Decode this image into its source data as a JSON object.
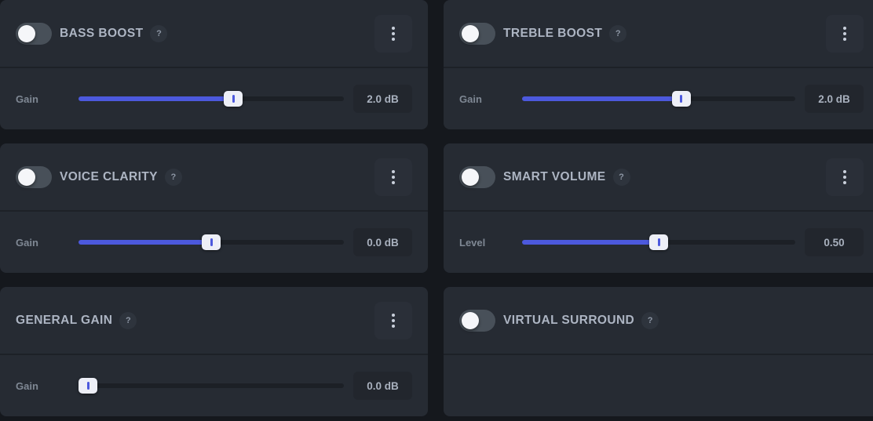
{
  "theme": {
    "page_bg": "#15181d",
    "panel_bg": "#262b33",
    "divider": "#1d2127",
    "track_bg": "#1c2026",
    "accent": "#4c59dd",
    "thumb_bg": "#edeff7",
    "title_color": "#adb5c3",
    "label_color": "#7f8894",
    "value_color": "#a9b1be",
    "value_box_bg": "#22262d",
    "toggle_bg": "#485059",
    "knob_color": "#f5f6f9",
    "menu_btn_bg": "#2a2f38",
    "dot_color": "#c9d0db",
    "help_bg": "#2e343d",
    "help_color": "#8d96a4"
  },
  "panels": [
    {
      "title": "BASS BOOST",
      "help_label": "?",
      "toggle_state": "off",
      "control": {
        "label": "Gain",
        "value": "2.0 dB",
        "percent": 58.3
      }
    },
    {
      "title": "TREBLE BOOST",
      "help_label": "?",
      "toggle_state": "off",
      "control": {
        "label": "Gain",
        "value": "2.0 dB",
        "percent": 58.3
      }
    },
    {
      "title": "VOICE CLARITY",
      "help_label": "?",
      "toggle_state": "off",
      "control": {
        "label": "Gain",
        "value": "0.0 dB",
        "percent": 50
      }
    },
    {
      "title": "SMART VOLUME",
      "help_label": "?",
      "toggle_state": "off",
      "control": {
        "label": "Level",
        "value": "0.50",
        "percent": 50
      }
    },
    {
      "title": "GENERAL GAIN",
      "help_label": "?",
      "control": {
        "label": "Gain",
        "value": "0.0 dB",
        "percent": 0
      }
    },
    {
      "title": "VIRTUAL SURROUND",
      "help_label": "?",
      "toggle_state": "off"
    }
  ]
}
